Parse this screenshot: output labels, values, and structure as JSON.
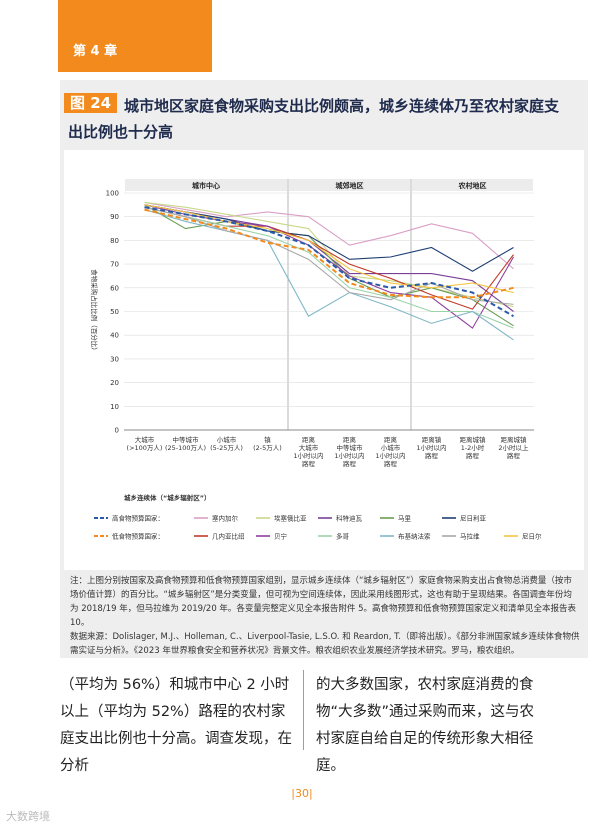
{
  "header": {
    "chapter": "第 4 章"
  },
  "figure": {
    "badge": "图 24",
    "title": "城市地区家庭食物采购支出比例颇高，城乡连续体乃至农村家庭支出比例也十分高"
  },
  "chart_data": {
    "type": "line",
    "ylabel": "食物采购占比比例（百分比）",
    "xlabel": "城乡连续体（“城乡辐射区”）",
    "ylim": [
      0,
      100
    ],
    "yticks": [
      0,
      10,
      20,
      30,
      40,
      50,
      60,
      70,
      80,
      90,
      100
    ],
    "regions": [
      "城市中心",
      "城郊地区",
      "农村地区"
    ],
    "categories": [
      "大城市\n(>100万人)",
      "中等城市\n(25-100万人)",
      "小城市\n(5-25万人)",
      "镇\n(2-5万人)",
      "距离\n大城市\n1小时以内\n路程",
      "距离\n中等城市\n1小时以内\n路程",
      "距离\n小城市\n1小时以内\n路程",
      "距离镇\n1小时以内\n路程",
      "距离城镇\n1-2小时\n路程",
      "距离城镇\n2小时以上\n路程"
    ],
    "series": [
      {
        "name": "高食物预算国家",
        "color": "#2a5ba8",
        "dashed": true,
        "values": [
          94,
          91,
          88,
          84,
          78,
          64,
          60,
          62,
          58,
          48
        ]
      },
      {
        "name": "低食物预算国家",
        "color": "#f28a1d",
        "dashed": true,
        "values": [
          93,
          89,
          85,
          79,
          76,
          62,
          57,
          56,
          56,
          60
        ]
      },
      {
        "name": "塞内加尔",
        "color": "#d9a0c5",
        "values": [
          96,
          93,
          90,
          92,
          90,
          78,
          82,
          87,
          83,
          68
        ]
      },
      {
        "name": "埃塞俄比亚",
        "color": "#c8d98a",
        "values": [
          96,
          94,
          91,
          88,
          85,
          65,
          63,
          60,
          56,
          52
        ]
      },
      {
        "name": "科特迪瓦",
        "color": "#7a3f98",
        "values": [
          95,
          92,
          89,
          86,
          80,
          66,
          66,
          66,
          63,
          50
        ]
      },
      {
        "name": "马里",
        "color": "#6a9e50",
        "values": [
          95,
          85,
          88,
          84,
          82,
          64,
          56,
          60,
          55,
          44
        ]
      },
      {
        "name": "尼日利亚",
        "color": "#1f3f73",
        "values": [
          95,
          92,
          89,
          84,
          82,
          72,
          73,
          77,
          67,
          77
        ]
      },
      {
        "name": "几内亚比绍",
        "color": "#c0392b",
        "values": [
          94,
          90,
          86,
          86,
          80,
          70,
          64,
          57,
          51,
          74
        ]
      },
      {
        "name": "贝宁",
        "color": "#8e3f9e",
        "values": [
          95,
          91,
          88,
          86,
          78,
          65,
          58,
          56,
          43,
          73
        ]
      },
      {
        "name": "多哥",
        "color": "#9ad3a8",
        "values": [
          94,
          90,
          86,
          82,
          75,
          60,
          56,
          50,
          50,
          43
        ]
      },
      {
        "name": "布基纳法索",
        "color": "#7fb7c7",
        "values": [
          93,
          88,
          84,
          80,
          48,
          58,
          52,
          45,
          50,
          38
        ]
      },
      {
        "name": "马拉维",
        "color": "#a8a8a8",
        "values": [
          94,
          90,
          84,
          80,
          72,
          58,
          55,
          62,
          55,
          53
        ]
      },
      {
        "name": "尼日尔",
        "color": "#f5c542",
        "values": [
          95,
          92,
          88,
          85,
          80,
          68,
          62,
          60,
          62,
          58
        ]
      }
    ]
  },
  "note": {
    "text1": "注：上图分别按国家及高食物预算和低食物预算国家组别，显示城乡连续体（“城乡辐射区”）家庭食物采购支出占食物总消费量（按市场价值计算）的百分比。“城乡辐射区”是分类变量，但可视为空间连续体，因此采用线图形式，这也有助于呈现结果。各国调查年份均为 2018/19 年，但马拉维为 2019/20 年。各变量完整定义见全本报告附件 5。高食物预算和低食物预算国家定义和清单见全本报告表 10。",
    "text2": "数据来源：Dolislager, M.J.、Holleman, C.、Liverpool-Tasie, L.S.O. 和 Reardon, T.（即将出版）。《部分非洲国家城乡连续体食物供需实证与分析》。《2023 年世界粮食安全和营养状况》背景文件。粮农组织农业发展经济学技术研究。罗马，粮农组织。"
  },
  "body": {
    "left": "（平均为 56%）和城市中心 2 小时以上（平均为 52%）路程的农村家庭支出比例也十分高。调查发现，在分析",
    "right": "的大多数国家，农村家庭消费的食物“大多数”通过采购而来，这与农村家庭自给自足的传统形象大相径庭。"
  },
  "footer": {
    "page": "|30|",
    "watermark": "大数跨境"
  }
}
